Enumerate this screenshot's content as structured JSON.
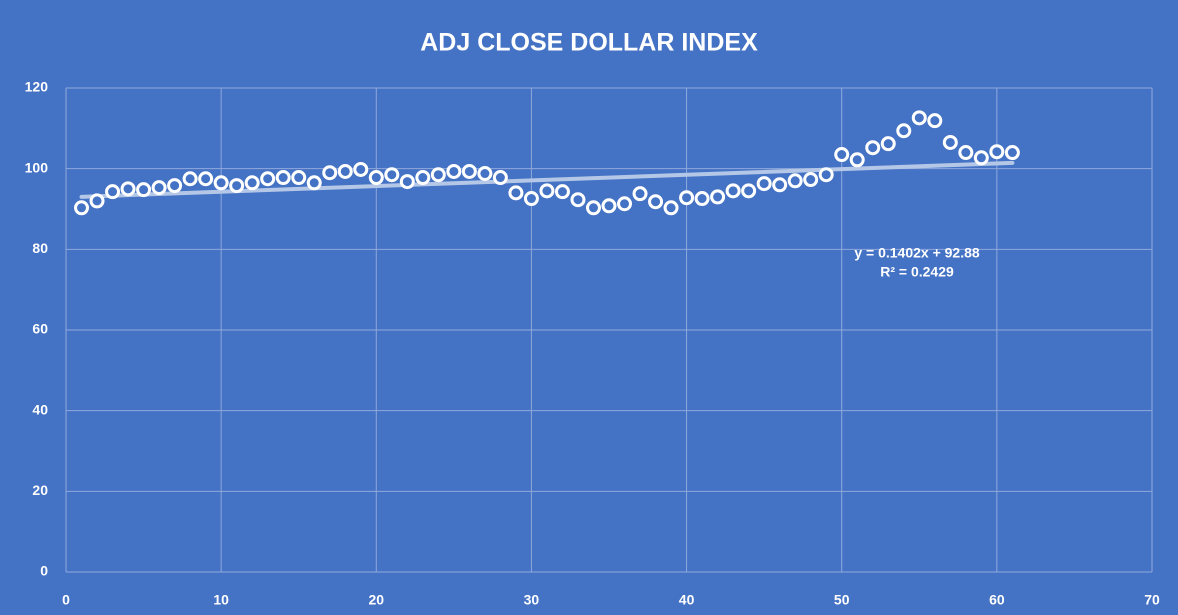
{
  "chart_data": {
    "type": "scatter",
    "title": "ADJ CLOSE DOLLAR INDEX",
    "x": [
      1,
      2,
      3,
      4,
      5,
      6,
      7,
      8,
      9,
      10,
      11,
      12,
      13,
      14,
      15,
      16,
      17,
      18,
      19,
      20,
      21,
      22,
      23,
      24,
      25,
      26,
      27,
      28,
      29,
      30,
      31,
      32,
      33,
      34,
      35,
      36,
      37,
      38,
      39,
      40,
      41,
      42,
      43,
      44,
      45,
      46,
      47,
      48,
      49,
      50,
      51,
      52,
      53,
      54,
      55,
      56,
      57,
      58,
      59,
      60,
      61
    ],
    "values": [
      90.3,
      92,
      94.3,
      95,
      94.8,
      95.3,
      95.8,
      97.5,
      97.5,
      96.5,
      95.8,
      96.5,
      97.5,
      97.8,
      97.8,
      96.5,
      99,
      99.3,
      99.8,
      97.8,
      98.5,
      96.8,
      97.8,
      98.5,
      99.3,
      99.3,
      98.8,
      97.8,
      94,
      92.6,
      94.5,
      94.3,
      92.3,
      90.3,
      90.8,
      91.3,
      93.8,
      91.8,
      90.3,
      92.8,
      92.6,
      93,
      94.5,
      94.5,
      96.3,
      96,
      97,
      97.3,
      98.5,
      103.5,
      102.2,
      105.2,
      106.2,
      109.4,
      112.6,
      111.9,
      106.5,
      104,
      102.7,
      104.2,
      104
    ],
    "color": "#ffffff",
    "trendline": {
      "slope": 0.1402,
      "intercept": 92.88,
      "equation": "y = 0.1402x + 92.88",
      "r2": "R² = 0.2429",
      "color": "#b4c7e7"
    },
    "xlim": [
      0,
      70
    ],
    "xticks": [
      0,
      10,
      20,
      30,
      40,
      50,
      60,
      70
    ],
    "ylim": [
      0,
      120
    ],
    "yticks": [
      0,
      20,
      40,
      60,
      80,
      100,
      120
    ],
    "grid": true
  }
}
